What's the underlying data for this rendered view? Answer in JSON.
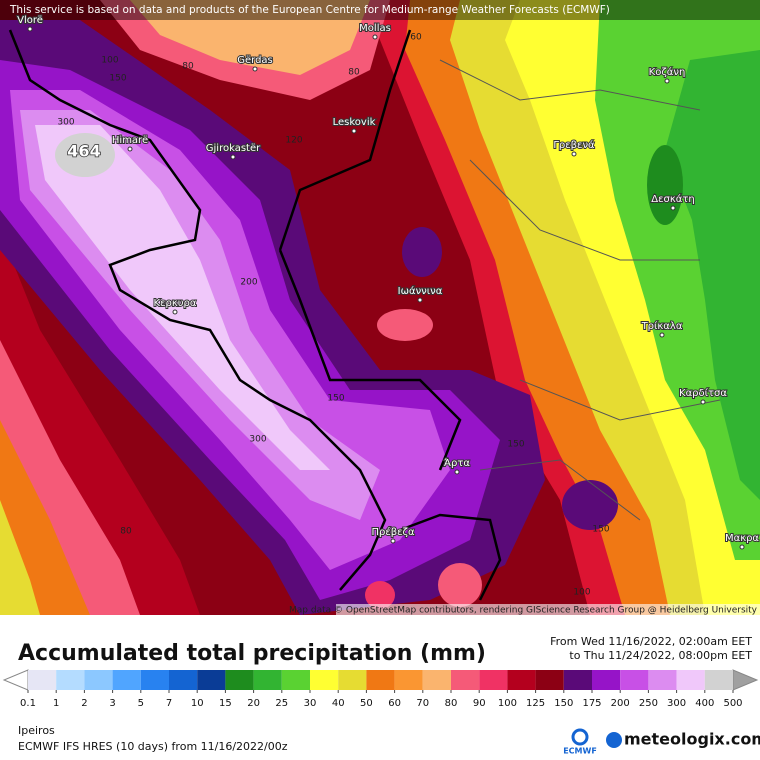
{
  "notice": "This service is based on data and products of the European Centre for Medium-range Weather Forecasts (ECMWF)",
  "places": [
    "Vlorë",
    "Mollas",
    "Gërdas",
    "Leskovik",
    "Himarë",
    "Gjirokastër",
    "Κερκυρα",
    "Ιωάννινα",
    "Γρεβενά",
    "Κοζάνη",
    "Δεσκάτη",
    "Τρίκαλα",
    "Καρδίτσα",
    "Άρτα",
    "Πρέβεζα",
    "Μακρα"
  ],
  "contour_labels": [
    100,
    150,
    80,
    80,
    60,
    300,
    120,
    200,
    150,
    300,
    80,
    150,
    150,
    100
  ],
  "max_label": 464,
  "attribution": "Map data © OpenStreetMap contributors, rendering GIScience Research Group @ Heidelberg University",
  "title": "Accumulated total precipitation (mm)",
  "period": {
    "from": "From Wed 11/16/2022, 02:00am EET",
    "to": "to Thu 11/24/2022, 08:00pm EET"
  },
  "legend": {
    "ticks": [
      0.1,
      1,
      2,
      3,
      5,
      7,
      10,
      15,
      20,
      25,
      30,
      40,
      50,
      60,
      70,
      80,
      90,
      100,
      125,
      150,
      175,
      200,
      250,
      300,
      400,
      500
    ],
    "colors": [
      "#e6e6f5",
      "#b4dcff",
      "#8cc8ff",
      "#50a5ff",
      "#2882f0",
      "#1464d2",
      "#0a3c96",
      "#1e8c1e",
      "#32b432",
      "#5ad232",
      "#ffff32",
      "#e6dc32",
      "#f07814",
      "#fa9632",
      "#fab46e",
      "#f55a78",
      "#f03264",
      "#b4001e",
      "#8c0014",
      "#5a0a78",
      "#9614c8",
      "#c850e6",
      "#dc8cf0",
      "#f0c8fa",
      "#d2d2d2"
    ],
    "under_color": "#ffffff",
    "over_color": "#a0a0a0"
  },
  "footer": {
    "region": "Ipeiros",
    "model": "ECMWF IFS HRES (10 days)  from  11/16/2022/00z",
    "logo": "ECMWF",
    "brand": "meteologix.com"
  }
}
